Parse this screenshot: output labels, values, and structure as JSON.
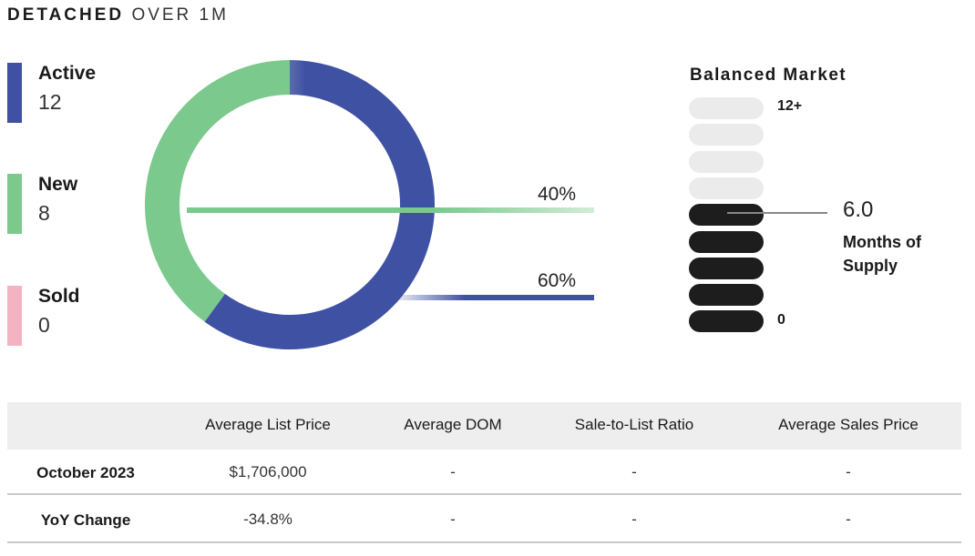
{
  "title": {
    "bold": "DETACHED",
    "light": "OVER 1M"
  },
  "legend": [
    {
      "label": "Active",
      "value": "12",
      "color": "#3f51a3"
    },
    {
      "label": "New",
      "value": "8",
      "color": "#7bc98c"
    },
    {
      "label": "Sold",
      "value": "0",
      "color": "#f4b3c0"
    }
  ],
  "chart_data": {
    "type": "pie",
    "style": "donut",
    "categories": [
      "Active",
      "New",
      "Sold"
    ],
    "values": [
      12,
      8,
      0
    ],
    "percent_labels": [
      {
        "category": "New",
        "text": "40%"
      },
      {
        "category": "Active",
        "text": "60%"
      }
    ],
    "colors": {
      "Active": "#3f51a3",
      "New": "#7bc98c",
      "Sold": "#f4b3c0"
    }
  },
  "market": {
    "title": "Balanced Market",
    "top_label": "12+",
    "bottom_label": "0",
    "levels": 9,
    "filled_levels": 5,
    "months_of_supply": "6.0",
    "mos_label": "Months of Supply"
  },
  "table": {
    "headers": [
      "",
      "Average List Price",
      "Average DOM",
      "Sale-to-List Ratio",
      "Average Sales Price"
    ],
    "rows": [
      {
        "label": "October 2023",
        "values": [
          "$1,706,000",
          "-",
          "-",
          "-"
        ]
      },
      {
        "label": "YoY Change",
        "values": [
          "-34.8%",
          "-",
          "-",
          "-"
        ]
      }
    ]
  }
}
